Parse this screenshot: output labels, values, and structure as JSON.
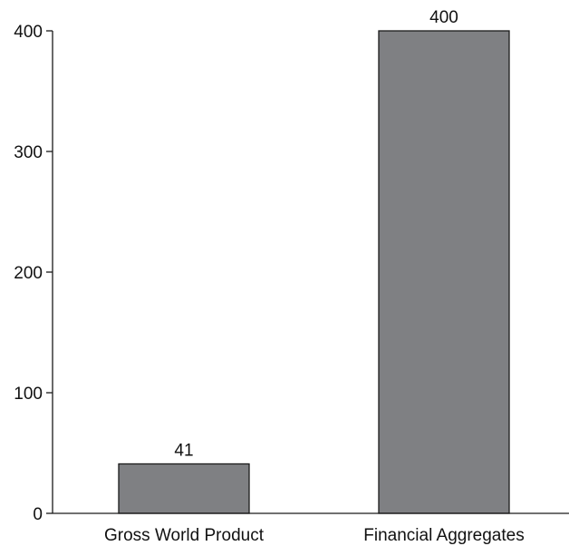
{
  "chart_data": {
    "type": "bar",
    "title": "",
    "xlabel": "",
    "ylabel": "",
    "categories": [
      "Gross World Product",
      "Financial Aggregates"
    ],
    "values": [
      41,
      400
    ],
    "data_labels": [
      "41",
      "400"
    ],
    "ylim": [
      0,
      400
    ],
    "yticks": [
      0,
      100,
      200,
      300,
      400
    ],
    "ytick_labels": [
      "0",
      "100",
      "200",
      "300",
      "400"
    ],
    "grid": false,
    "legend": "none",
    "bar_color": "#7f8083",
    "bar_edge_color": "#1a1a1a",
    "axis_color": "#1a1a1a"
  }
}
